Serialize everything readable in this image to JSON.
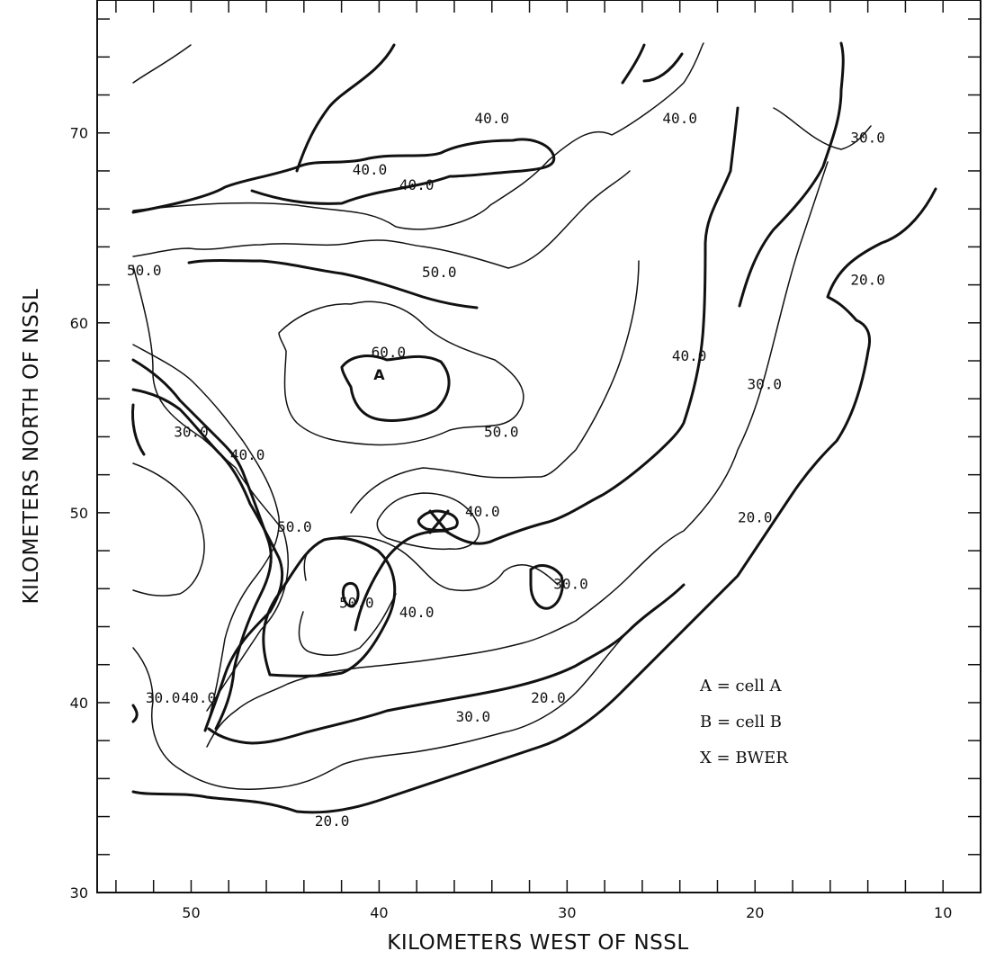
{
  "chart_data": {
    "type": "contour",
    "title": "",
    "xlabel": "KILOMETERS WEST OF NSSL",
    "ylabel": "KILOMETERS NORTH OF NSSL",
    "xlim": [
      55,
      8
    ],
    "ylim": [
      30,
      77
    ],
    "x_ticks": [
      50,
      40,
      30,
      20,
      10
    ],
    "y_ticks": [
      30,
      40,
      50,
      60,
      70
    ],
    "grid": false,
    "contour_levels": [
      20.0,
      30.0,
      40.0,
      50.0,
      60.0
    ],
    "contour_labels": [
      {
        "text": "40.0",
        "x": 34.0,
        "y": 70.5
      },
      {
        "text": "40.0",
        "x": 40.5,
        "y": 67.8
      },
      {
        "text": "40.0",
        "x": 38.0,
        "y": 67.0
      },
      {
        "text": "40.0",
        "x": 24.0,
        "y": 70.5
      },
      {
        "text": "30.0",
        "x": 14.0,
        "y": 69.5
      },
      {
        "text": "50.0",
        "x": 52.5,
        "y": 62.5
      },
      {
        "text": "50.0",
        "x": 36.8,
        "y": 62.4
      },
      {
        "text": "60.0",
        "x": 39.5,
        "y": 58.2
      },
      {
        "text": "A",
        "x": 40.0,
        "y": 57.0
      },
      {
        "text": "50.0",
        "x": 33.5,
        "y": 54.0
      },
      {
        "text": "40.0",
        "x": 23.5,
        "y": 58.0
      },
      {
        "text": "30.0",
        "x": 19.5,
        "y": 56.5
      },
      {
        "text": "20.0",
        "x": 14.0,
        "y": 62.0
      },
      {
        "text": "30.0",
        "x": 50.0,
        "y": 54.0
      },
      {
        "text": "40.0",
        "x": 47.0,
        "y": 52.8
      },
      {
        "text": "50.0",
        "x": 44.5,
        "y": 49.0
      },
      {
        "text": "40.0",
        "x": 34.5,
        "y": 49.8
      },
      {
        "text": "20.0",
        "x": 20.0,
        "y": 49.5
      },
      {
        "text": "50.0",
        "x": 41.2,
        "y": 45.0
      },
      {
        "text": "40.0",
        "x": 38.0,
        "y": 44.5
      },
      {
        "text": "30.0",
        "x": 29.8,
        "y": 46.0
      },
      {
        "text": "30.0",
        "x": 51.5,
        "y": 40.0
      },
      {
        "text": "40.0",
        "x": 49.6,
        "y": 40.0
      },
      {
        "text": "30.0",
        "x": 35.0,
        "y": 39.0
      },
      {
        "text": "20.0",
        "x": 31.0,
        "y": 40.0
      },
      {
        "text": "20.0",
        "x": 42.5,
        "y": 33.5
      }
    ],
    "annotations": [
      {
        "text": "A = cell A"
      },
      {
        "text": "B = cell B"
      },
      {
        "text": "X = BWER"
      }
    ]
  }
}
